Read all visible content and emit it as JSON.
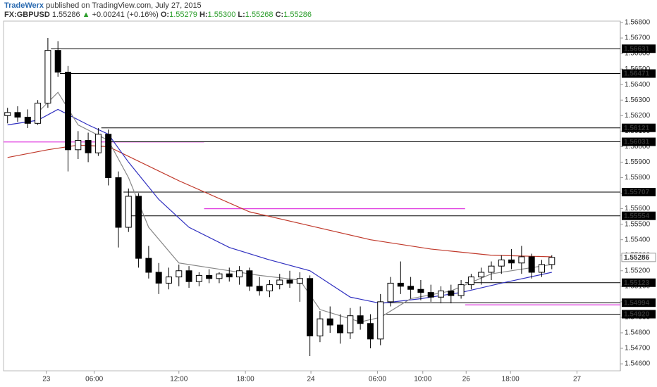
{
  "header": {
    "author": "TradeWerx",
    "published": "published on TradingView.com, July 27, 2015",
    "symbol": "FX:GBPUSD",
    "last": "1.55286",
    "change": "+0.00241 (+0.16%)",
    "open_label": "O:",
    "open": "1.55279",
    "high_label": "H:",
    "high": "1.55300",
    "low_label": "L:",
    "low": "1.55268",
    "close_label": "C:",
    "close": "1.55286"
  },
  "chart_data": {
    "type": "candlestick",
    "x": [
      0,
      1,
      2,
      3,
      4,
      5,
      6,
      7,
      8,
      9,
      10,
      11,
      12,
      13,
      14,
      15,
      16,
      17,
      18,
      19,
      20,
      21,
      22,
      23,
      24,
      25,
      26,
      27,
      28,
      29,
      30,
      31,
      32,
      33,
      34,
      35,
      36,
      37,
      38,
      39,
      40,
      41,
      42,
      43,
      44,
      45,
      46,
      47,
      48,
      49,
      50,
      51,
      52,
      53,
      54
    ],
    "open": [
      1.562,
      1.5622,
      1.5619,
      1.5615,
      1.5628,
      1.5662,
      1.5648,
      1.5598,
      1.5604,
      1.5596,
      1.5608,
      1.558,
      1.5548,
      1.5568,
      1.5528,
      1.5519,
      1.5512,
      1.5516,
      1.552,
      1.5513,
      1.5517,
      1.5515,
      1.5518,
      1.5516,
      1.552,
      1.551,
      1.5507,
      1.5511,
      1.5514,
      1.5512,
      1.5515,
      1.5478,
      1.5489,
      1.5485,
      1.548,
      1.5491,
      1.5486,
      1.5476,
      1.55,
      1.5512,
      1.551,
      1.5508,
      1.5506,
      1.5503,
      1.5507,
      1.5504,
      1.5511,
      1.5516,
      1.5519,
      1.5523,
      1.5527,
      1.5525,
      1.5529,
      1.5519,
      1.5524
    ],
    "high": [
      1.5625,
      1.5626,
      1.5624,
      1.563,
      1.567,
      1.5668,
      1.5652,
      1.561,
      1.5609,
      1.5612,
      1.5611,
      1.5584,
      1.5573,
      1.557,
      1.5536,
      1.5525,
      1.5522,
      1.5524,
      1.5523,
      1.5519,
      1.5521,
      1.5519,
      1.5522,
      1.5523,
      1.5522,
      1.5516,
      1.5514,
      1.5518,
      1.552,
      1.5519,
      1.5517,
      1.5494,
      1.5497,
      1.5492,
      1.5496,
      1.5497,
      1.5492,
      1.5505,
      1.5516,
      1.5526,
      1.5516,
      1.5514,
      1.5511,
      1.551,
      1.5511,
      1.5514,
      1.5518,
      1.5522,
      1.5526,
      1.553,
      1.5534,
      1.5536,
      1.5531,
      1.5527,
      1.553
    ],
    "low": [
      1.5615,
      1.5616,
      1.5612,
      1.5614,
      1.5625,
      1.5645,
      1.5584,
      1.5592,
      1.559,
      1.5594,
      1.5575,
      1.5535,
      1.5545,
      1.5522,
      1.5515,
      1.5505,
      1.5508,
      1.551,
      1.5509,
      1.551,
      1.5512,
      1.5512,
      1.5513,
      1.5511,
      1.5507,
      1.5504,
      1.5503,
      1.5508,
      1.5509,
      1.55,
      1.5465,
      1.5474,
      1.548,
      1.5473,
      1.5476,
      1.5482,
      1.547,
      1.5472,
      1.5497,
      1.5505,
      1.5502,
      1.5501,
      1.55,
      1.5499,
      1.5499,
      1.5502,
      1.5508,
      1.5511,
      1.5514,
      1.5518,
      1.5521,
      1.5518,
      1.5515,
      1.5516,
      1.5521
    ],
    "close": [
      1.5622,
      1.5619,
      1.5615,
      1.5628,
      1.5662,
      1.5648,
      1.5598,
      1.5604,
      1.5596,
      1.5608,
      1.558,
      1.5548,
      1.5568,
      1.5528,
      1.5519,
      1.5512,
      1.5516,
      1.552,
      1.5513,
      1.5517,
      1.5515,
      1.5518,
      1.5516,
      1.552,
      1.551,
      1.5507,
      1.5511,
      1.5514,
      1.5512,
      1.5515,
      1.5478,
      1.5489,
      1.5485,
      1.548,
      1.5491,
      1.5486,
      1.5476,
      1.55,
      1.5512,
      1.551,
      1.5508,
      1.5506,
      1.5503,
      1.5507,
      1.5504,
      1.5511,
      1.5516,
      1.5519,
      1.5523,
      1.5527,
      1.5525,
      1.5529,
      1.5519,
      1.5524,
      1.55286
    ],
    "moving_averages": [
      {
        "color": "#c0392b",
        "x": [
          0,
          4,
          7,
          10,
          17,
          24,
          30,
          36,
          42,
          48,
          54
        ],
        "values": [
          1.5593,
          1.5598,
          1.5601,
          1.56,
          1.5578,
          1.5558,
          1.5549,
          1.554,
          1.5534,
          1.553,
          1.5529
        ]
      },
      {
        "color": "#3030c0",
        "x": [
          0,
          3,
          5,
          8,
          10,
          12,
          15,
          18,
          22,
          26,
          30,
          34,
          37,
          41,
          45,
          49,
          54
        ],
        "values": [
          1.5614,
          1.5617,
          1.5624,
          1.5614,
          1.5608,
          1.559,
          1.5566,
          1.5548,
          1.5535,
          1.5527,
          1.552,
          1.5503,
          1.5499,
          1.5502,
          1.5506,
          1.5512,
          1.5519
        ]
      },
      {
        "color": "#888888",
        "x": [
          3,
          5,
          7,
          10,
          12,
          14,
          17,
          21,
          25,
          29,
          31,
          35,
          37,
          40,
          44,
          48,
          51,
          54
        ],
        "values": [
          1.5622,
          1.5635,
          1.5614,
          1.5604,
          1.558,
          1.5548,
          1.5525,
          1.5521,
          1.5517,
          1.5514,
          1.5495,
          1.5487,
          1.549,
          1.5502,
          1.5507,
          1.5518,
          1.5521,
          1.5524
        ]
      }
    ],
    "levels": [
      {
        "value": 1.56631,
        "x_start": 4.3
      },
      {
        "value": 1.56471,
        "x_start": 5.2
      },
      {
        "value": 1.56121,
        "x_start": 9.3
      },
      {
        "value": 1.56031,
        "x_start": 9.7
      },
      {
        "value": 1.55707,
        "x_start": 11.5
      },
      {
        "value": 1.55554,
        "x_start": 12.1
      },
      {
        "value": 1.55123,
        "x_start": 45.4
      },
      {
        "value": 1.54994,
        "x_start": 37.4
      },
      {
        "value": {
          "value": 1.5492,
          "label": "1.54920"
        },
        "x_start": 37.4
      }
    ],
    "last_price": 1.55286,
    "highlights": [
      {
        "color": "#e040e0",
        "value": 1.5603,
        "x_range": [
          -0.4,
          19.5
        ]
      },
      {
        "color": "#e040e0",
        "value": 1.556,
        "x_range": [
          19.5,
          45.4
        ]
      },
      {
        "color": "#e040e0",
        "value": 1.5498,
        "x_range": [
          45.4,
          60.8
        ]
      }
    ],
    "xlim": [
      -0.4,
      60.8
    ],
    "ylim": [
      1.54555,
      1.56809
    ],
    "xticks": [
      {
        "value": 3.85,
        "label": "23"
      },
      {
        "value": 8.6,
        "label": "06:00"
      },
      {
        "value": 17,
        "label": "12:00"
      },
      {
        "value": 23.6,
        "label": "18:00"
      },
      {
        "value": 30.1,
        "label": "24"
      },
      {
        "value": 36.7,
        "label": "06:00"
      },
      {
        "value": 41.2,
        "label": "10:00"
      },
      {
        "value": 45.5,
        "label": "26"
      },
      {
        "value": 49.9,
        "label": "18:00"
      },
      {
        "value": 56.5,
        "label": "27"
      }
    ],
    "yticks": [
      {
        "value": 1.546,
        "label": "1.54600"
      },
      {
        "value": 1.547,
        "label": "1.54700"
      },
      {
        "value": 1.548,
        "label": "1.54800"
      },
      {
        "value": 1.549,
        "label": "1.54900"
      },
      {
        "value": 1.55,
        "label": "1.55000"
      },
      {
        "value": 1.551,
        "label": "1.55100"
      },
      {
        "value": 1.552,
        "label": "1.55200"
      },
      {
        "value": 1.553,
        "label": "1.55300"
      },
      {
        "value": 1.554,
        "label": "1.55400"
      },
      {
        "value": 1.555,
        "label": "1.55500"
      },
      {
        "value": 1.556,
        "label": "1.55600"
      },
      {
        "value": 1.557,
        "label": "1.55700"
      },
      {
        "value": 1.558,
        "label": "1.55800"
      },
      {
        "value": 1.559,
        "label": "1.55900"
      },
      {
        "value": 1.56,
        "label": "1.56000"
      },
      {
        "value": 1.561,
        "label": "1.56100"
      },
      {
        "value": 1.562,
        "label": "1.56200"
      },
      {
        "value": 1.563,
        "label": "1.56300"
      },
      {
        "value": 1.564,
        "label": "1.56400"
      },
      {
        "value": 1.565,
        "label": "1.56500"
      },
      {
        "value": 1.566,
        "label": "1.56600"
      },
      {
        "value": 1.567,
        "label": "1.56700"
      },
      {
        "value": 1.568,
        "label": "1.56800"
      }
    ],
    "up_color": "#ffffff",
    "down_color": "#000000",
    "level_color": "#000000"
  }
}
